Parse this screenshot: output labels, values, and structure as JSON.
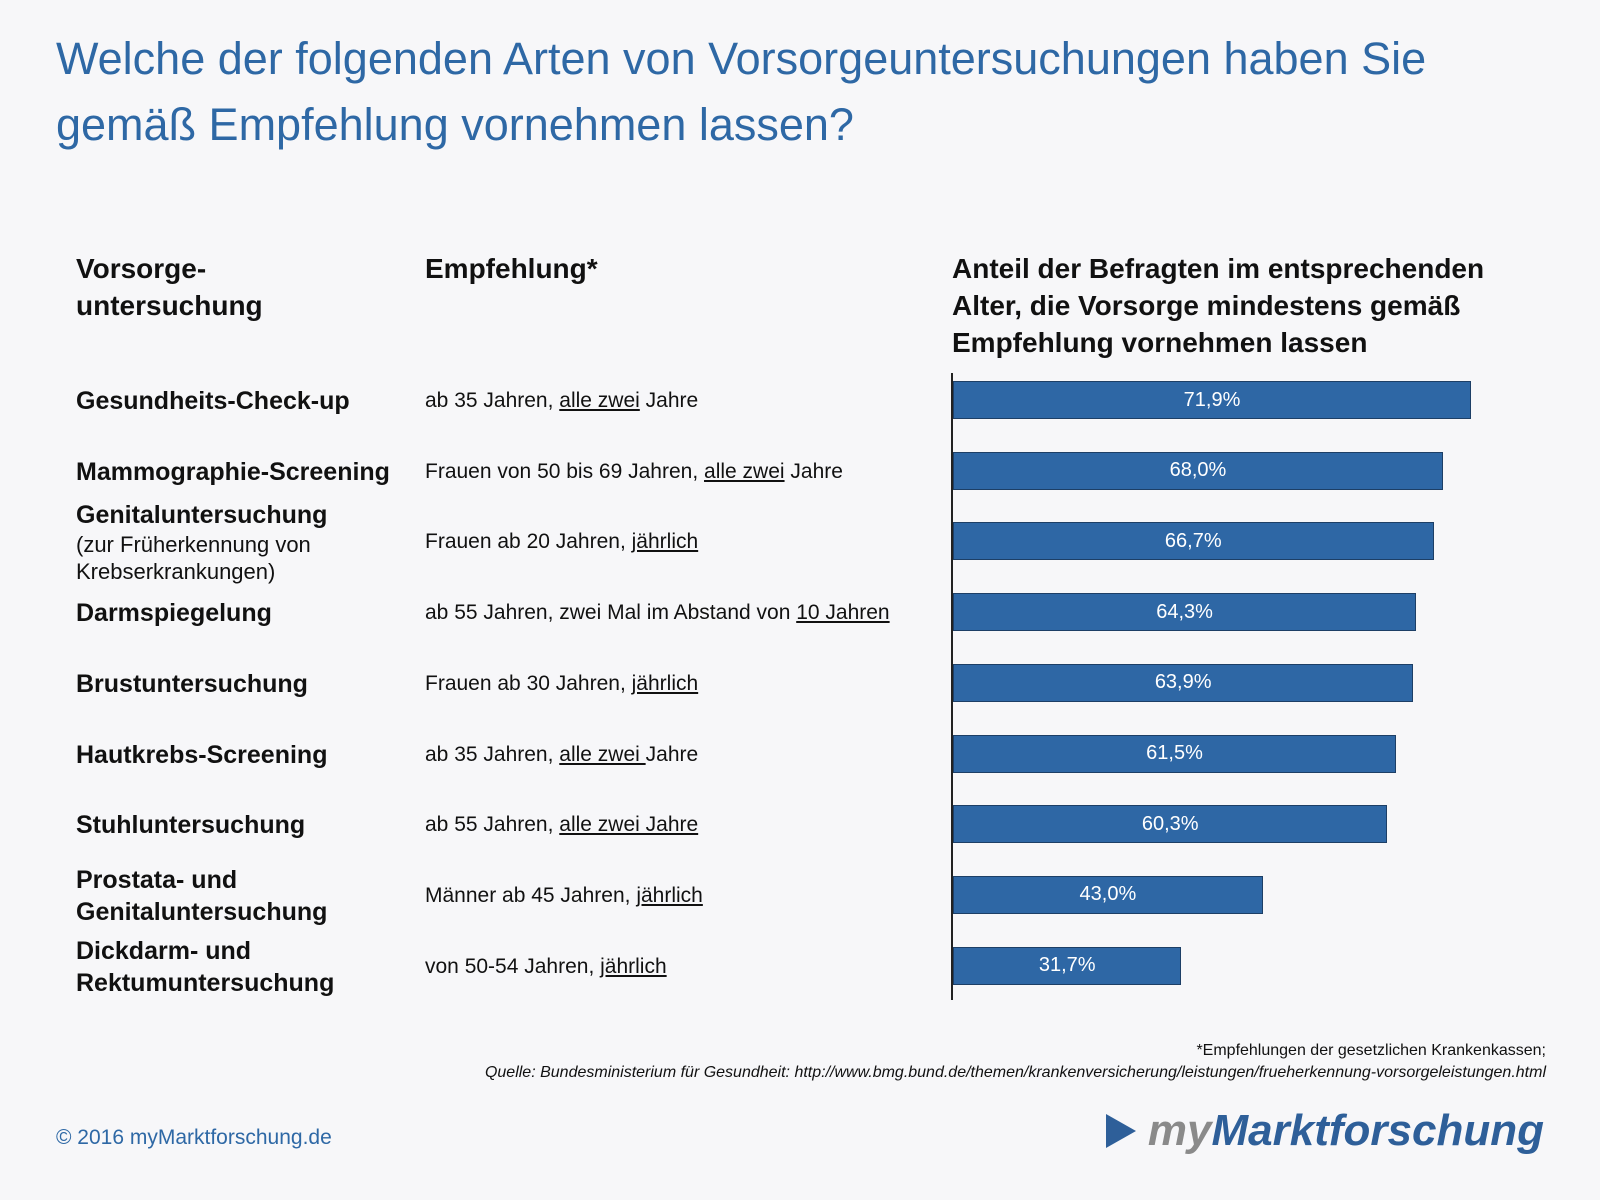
{
  "title": "Welche der folgenden Arten von Vorsorgeuntersuchungen haben Sie gemäß Empfehlung vornehmen lassen?",
  "columns": {
    "name": [
      "Vorsorge-",
      "untersuchung"
    ],
    "recommendation": "Empfehlung*",
    "share": "Anteil der Befragten im entsprechenden Alter, die Vorsorge mindestens gemäß Empfehlung vornehmen lassen"
  },
  "rows": [
    {
      "name": "Gesundheits-Check-up",
      "sub": "",
      "rec_prefix": "ab 35 Jahren, ",
      "rec_u": "alle zwei",
      "rec_suffix": " Jahre",
      "value_label": "71,9%"
    },
    {
      "name": "Mammographie-Screening",
      "sub": "",
      "rec_prefix": "Frauen von 50 bis 69 Jahren, ",
      "rec_u": "alle zwei",
      "rec_suffix": " Jahre",
      "value_label": "68,0%"
    },
    {
      "name": "Genitaluntersuchung",
      "sub": "(zur Früherkennung von Krebserkrankungen)",
      "rec_prefix": "Frauen ab 20 Jahren, ",
      "rec_u": "jährlich",
      "rec_suffix": "",
      "value_label": "66,7%"
    },
    {
      "name": "Darmspiegelung",
      "sub": "",
      "rec_prefix": "ab 55 Jahren, zwei Mal im Abstand von ",
      "rec_u": "10 Jahren",
      "rec_suffix": "",
      "value_label": "64,3%"
    },
    {
      "name": "Brustuntersuchung",
      "sub": "",
      "rec_prefix": "Frauen ab 30 Jahren, ",
      "rec_u": "jährlich",
      "rec_suffix": "",
      "value_label": "63,9%"
    },
    {
      "name": "Hautkrebs-Screening",
      "sub": "",
      "rec_prefix": "ab 35 Jahren, ",
      "rec_u": "alle zwei ",
      "rec_suffix": "Jahre",
      "value_label": "61,5%"
    },
    {
      "name": "Stuhluntersuchung",
      "sub": "",
      "rec_prefix": "ab 55 Jahren, ",
      "rec_u": "alle zwei Jahre",
      "rec_suffix": "",
      "value_label": "60,3%"
    },
    {
      "name": "Prostata- und Genitaluntersuchung",
      "sub": "",
      "rec_prefix": "Männer ab 45 Jahren, ",
      "rec_u": "jährlich",
      "rec_suffix": "",
      "value_label": "43,0%"
    },
    {
      "name": "Dickdarm- und Rektumuntersuchung",
      "sub": "",
      "rec_prefix": "von 50-54 Jahren, ",
      "rec_u": "jährlich",
      "rec_suffix": "",
      "value_label": "31,7%"
    }
  ],
  "chart_data": {
    "type": "bar",
    "orientation": "horizontal",
    "title": "Anteil der Befragten im entsprechenden Alter, die Vorsorge mindestens gemäß Empfehlung vornehmen lassen",
    "categories": [
      "Gesundheits-Check-up",
      "Mammographie-Screening",
      "Genitaluntersuchung",
      "Darmspiegelung",
      "Brustuntersuchung",
      "Hautkrebs-Screening",
      "Stuhluntersuchung",
      "Prostata- und Genitaluntersuchung",
      "Dickdarm- und Rektumuntersuchung"
    ],
    "values": [
      71.9,
      68.0,
      66.7,
      64.3,
      63.9,
      61.5,
      60.3,
      43.0,
      31.7
    ],
    "unit": "%",
    "xlim": [
      0,
      100
    ],
    "grid": false
  },
  "footnote": "*Empfehlungen der gesetzlichen Krankenkassen;",
  "source": "Quelle: Bundesministerium für Gesundheit: http://www.bmg.bund.de/themen/krankenversicherung/leistungen/frueherkennung-vorsorgeleistungen.html",
  "copyright": "© 2016 myMarktforschung.de",
  "logo": {
    "prefix": "my",
    "main": "Marktforschung"
  },
  "colors": {
    "accent": "#2e68a5",
    "bar": "#2e67a5",
    "logo_gray": "#8a8a8a"
  }
}
